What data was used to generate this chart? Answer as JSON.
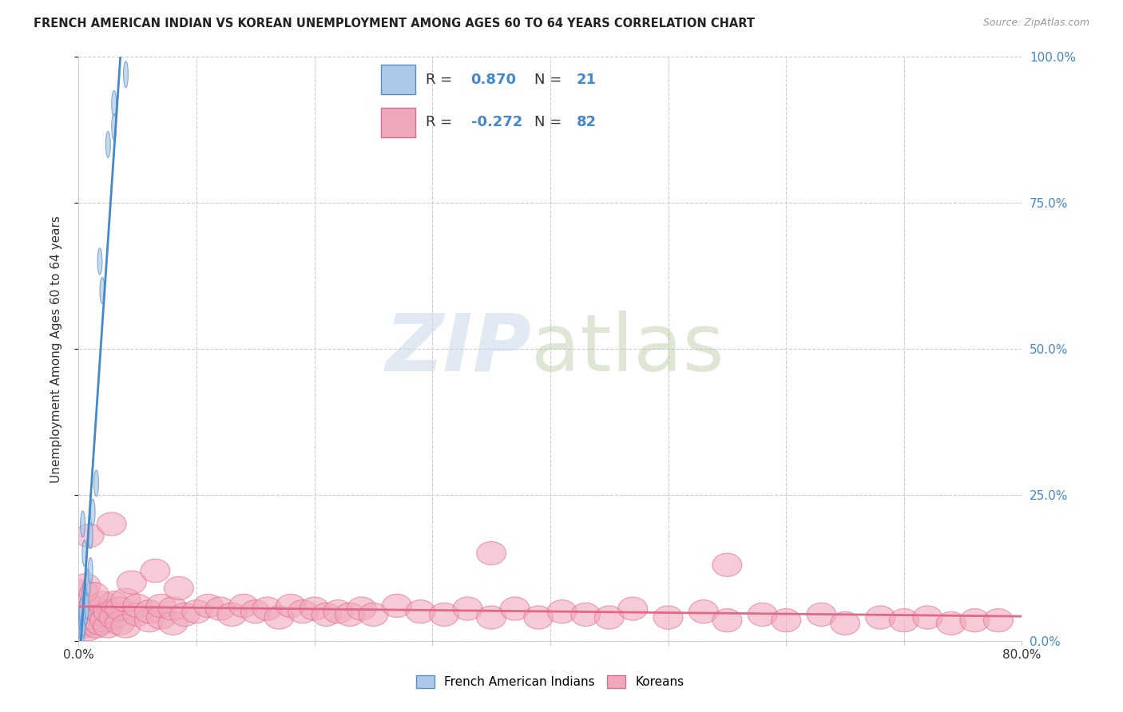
{
  "title": "FRENCH AMERICAN INDIAN VS KOREAN UNEMPLOYMENT AMONG AGES 60 TO 64 YEARS CORRELATION CHART",
  "source": "Source: ZipAtlas.com",
  "ylabel": "Unemployment Among Ages 60 to 64 years",
  "legend1_label": "French American Indians",
  "legend2_label": "Koreans",
  "r1": 0.87,
  "n1": 21,
  "r2": -0.272,
  "n2": 82,
  "color_blue_fill": "#adc8e8",
  "color_blue_edge": "#5590cc",
  "color_blue_line": "#4488cc",
  "color_pink_fill": "#f0a8bc",
  "color_pink_edge": "#e06888",
  "color_pink_line": "#e06888",
  "background_color": "#ffffff",
  "xlim": [
    0,
    80
  ],
  "ylim": [
    0,
    100
  ],
  "blue_x": [
    0.15,
    0.2,
    0.25,
    0.3,
    0.35,
    0.4,
    0.5,
    0.5,
    0.6,
    0.7,
    0.8,
    1.0,
    1.0,
    1.2,
    1.5,
    1.8,
    2.0,
    2.5,
    3.0,
    3.0,
    4.0
  ],
  "blue_y": [
    2.0,
    4.0,
    5.0,
    1.5,
    20.0,
    3.0,
    8.0,
    15.0,
    5.0,
    6.0,
    10.0,
    18.0,
    12.0,
    22.0,
    27.0,
    65.0,
    60.0,
    85.0,
    92.0,
    88.0,
    97.0
  ],
  "pink_x": [
    0.3,
    0.5,
    0.5,
    0.7,
    0.8,
    0.8,
    1.0,
    1.0,
    1.2,
    1.5,
    1.5,
    1.8,
    2.0,
    2.0,
    2.2,
    2.5,
    2.5,
    3.0,
    3.0,
    3.5,
    3.5,
    4.0,
    4.0,
    5.0,
    5.0,
    6.0,
    6.0,
    7.0,
    7.0,
    8.0,
    8.0,
    9.0,
    10.0,
    11.0,
    12.0,
    13.0,
    14.0,
    15.0,
    16.0,
    17.0,
    18.0,
    19.0,
    20.0,
    21.0,
    22.0,
    23.0,
    24.0,
    25.0,
    27.0,
    29.0,
    31.0,
    33.0,
    35.0,
    37.0,
    39.0,
    41.0,
    43.0,
    45.0,
    47.0,
    50.0,
    53.0,
    55.0,
    58.0,
    60.0,
    63.0,
    65.0,
    68.0,
    70.0,
    72.0,
    74.0,
    76.0,
    78.0,
    0.4,
    0.6,
    0.9,
    1.3,
    2.8,
    4.5,
    6.5,
    8.5,
    35.0,
    55.0
  ],
  "pink_y": [
    3.0,
    2.5,
    4.0,
    3.5,
    2.0,
    5.0,
    3.0,
    6.0,
    4.0,
    2.5,
    5.5,
    3.0,
    4.5,
    6.5,
    3.5,
    2.5,
    5.0,
    4.0,
    6.5,
    3.0,
    5.5,
    2.5,
    7.0,
    4.5,
    6.0,
    3.5,
    5.0,
    4.0,
    6.0,
    3.0,
    5.5,
    4.5,
    5.0,
    6.0,
    5.5,
    4.5,
    6.0,
    5.0,
    5.5,
    4.0,
    6.0,
    5.0,
    5.5,
    4.5,
    5.0,
    4.5,
    5.5,
    4.5,
    6.0,
    5.0,
    4.5,
    5.5,
    4.0,
    5.5,
    4.0,
    5.0,
    4.5,
    4.0,
    5.5,
    4.0,
    5.0,
    3.5,
    4.5,
    3.5,
    4.5,
    3.0,
    4.0,
    3.5,
    4.0,
    3.0,
    3.5,
    3.5,
    8.5,
    9.5,
    18.0,
    8.0,
    20.0,
    10.0,
    12.0,
    9.0,
    15.0,
    13.0
  ]
}
